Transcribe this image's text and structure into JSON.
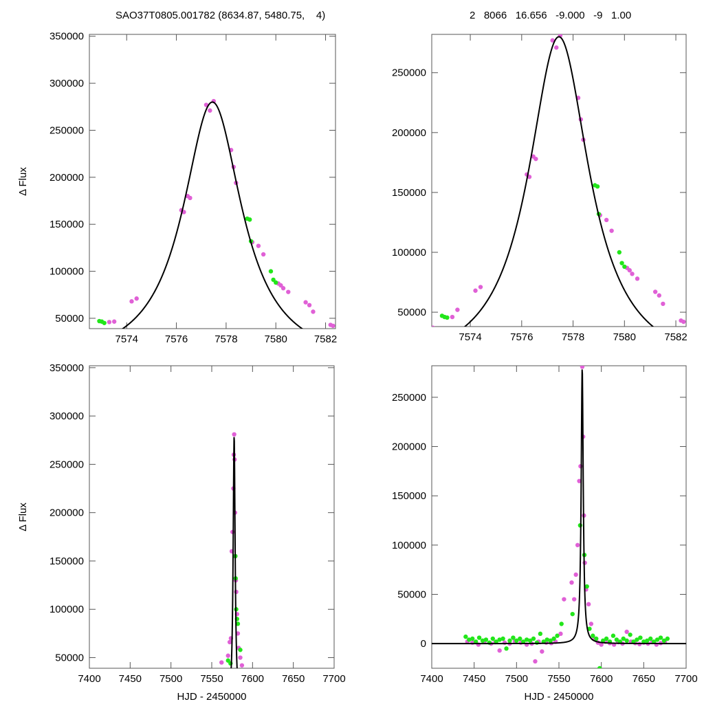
{
  "header": {
    "left": "SAO37T0805.001782 (8634.87, 5480.75,    4)",
    "right": "2   8066   16.656   -9.000   -9   1.00"
  },
  "colors": {
    "series_a": "#e060d6",
    "series_b": "#22e61a",
    "model": "#000000"
  },
  "chart_data": [
    {
      "type": "scatter",
      "ylabel": "Δ Flux",
      "xlabel": "",
      "xlim": [
        7572.5,
        7582.4
      ],
      "ylim": [
        39000,
        352000
      ],
      "xticks": [
        7574,
        7576,
        7578,
        7580,
        7582
      ],
      "yticks": [
        50000,
        100000,
        150000,
        200000,
        250000,
        300000,
        350000
      ],
      "model": {
        "t0": 7577.45,
        "peak": 280000,
        "base": 0,
        "width": 1.45
      },
      "series": [
        {
          "color": "magenta",
          "points": [
            [
              7573.3,
              46000
            ],
            [
              7573.5,
              46500
            ],
            [
              7574.2,
              68000
            ],
            [
              7574.4,
              71000
            ],
            [
              7576.2,
              165000
            ],
            [
              7576.3,
              163000
            ],
            [
              7576.45,
              180000
            ],
            [
              7576.55,
              178000
            ],
            [
              7577.2,
              277000
            ],
            [
              7577.35,
              271000
            ],
            [
              7577.5,
              281000
            ],
            [
              7578.2,
              229000
            ],
            [
              7578.3,
              211000
            ],
            [
              7578.4,
              194000
            ],
            [
              7579.05,
              131000
            ],
            [
              7579.3,
              127000
            ],
            [
              7579.5,
              118000
            ],
            [
              7580.1,
              87000
            ],
            [
              7580.2,
              85000
            ],
            [
              7580.3,
              82000
            ],
            [
              7580.5,
              78000
            ],
            [
              7581.2,
              67000
            ],
            [
              7581.35,
              64000
            ],
            [
              7581.5,
              57000
            ],
            [
              7582.2,
              43000
            ],
            [
              7582.3,
              42000
            ]
          ]
        },
        {
          "color": "green",
          "points": [
            [
              7572.9,
              47000
            ],
            [
              7573.0,
              46500
            ],
            [
              7573.1,
              45000
            ],
            [
              7578.85,
              156000
            ],
            [
              7578.95,
              155000
            ],
            [
              7579.0,
              132000
            ],
            [
              7579.8,
              100000
            ],
            [
              7579.9,
              91000
            ],
            [
              7580.0,
              88000
            ]
          ]
        }
      ]
    },
    {
      "type": "scatter",
      "ylabel": "",
      "xlabel": "",
      "xlim": [
        7572.5,
        7582.4
      ],
      "ylim": [
        38000,
        282000
      ],
      "xticks": [
        7574,
        7576,
        7578,
        7580,
        7582
      ],
      "yticks": [
        50000,
        100000,
        150000,
        200000,
        250000
      ],
      "model": {
        "t0": 7577.45,
        "peak": 280000,
        "base": 0,
        "width": 1.45
      },
      "series": [
        {
          "color": "magenta",
          "points": [
            [
              7572.55,
              37000
            ],
            [
              7573.3,
              46000
            ],
            [
              7573.5,
              52000
            ],
            [
              7574.2,
              68000
            ],
            [
              7574.4,
              71000
            ],
            [
              7576.2,
              165000
            ],
            [
              7576.3,
              163000
            ],
            [
              7576.45,
              180000
            ],
            [
              7576.55,
              178000
            ],
            [
              7577.2,
              277000
            ],
            [
              7577.35,
              271000
            ],
            [
              7577.5,
              281000
            ],
            [
              7578.2,
              229000
            ],
            [
              7578.3,
              211000
            ],
            [
              7578.4,
              194000
            ],
            [
              7579.05,
              131000
            ],
            [
              7579.3,
              127000
            ],
            [
              7579.5,
              118000
            ],
            [
              7580.1,
              87000
            ],
            [
              7580.2,
              85000
            ],
            [
              7580.3,
              82000
            ],
            [
              7580.5,
              78000
            ],
            [
              7581.2,
              67000
            ],
            [
              7581.35,
              64000
            ],
            [
              7581.5,
              57000
            ],
            [
              7582.2,
              43000
            ],
            [
              7582.3,
              42000
            ]
          ]
        },
        {
          "color": "green",
          "points": [
            [
              7572.9,
              47000
            ],
            [
              7573.0,
              46000
            ],
            [
              7573.1,
              45500
            ],
            [
              7578.85,
              156000
            ],
            [
              7578.95,
              155000
            ],
            [
              7579.0,
              132000
            ],
            [
              7579.8,
              100000
            ],
            [
              7579.9,
              91000
            ],
            [
              7580.0,
              88000
            ]
          ]
        }
      ]
    },
    {
      "type": "scatter",
      "ylabel": "Δ Flux",
      "xlabel": "HJD - 2450000",
      "xlim": [
        7400,
        7700
      ],
      "ylim": [
        39000,
        352000
      ],
      "xticks": [
        7400,
        7450,
        7500,
        7550,
        7600,
        7650,
        7700
      ],
      "yticks": [
        50000,
        100000,
        150000,
        200000,
        250000,
        300000,
        350000
      ],
      "model": {
        "t0": 7577.45,
        "peak": 280000,
        "base": 0,
        "width": 1.45
      },
      "series": [
        {
          "color": "magenta",
          "points": [
            [
              7562,
              45000
            ],
            [
              7570,
              52000
            ],
            [
              7572,
              66000
            ],
            [
              7573.5,
              70000
            ],
            [
              7574.5,
              160000
            ],
            [
              7575.5,
              180000
            ],
            [
              7576.5,
              225000
            ],
            [
              7577,
              260000
            ],
            [
              7577.5,
              281000
            ],
            [
              7578,
              255000
            ],
            [
              7578.5,
              200000
            ],
            [
              7579,
              155000
            ],
            [
              7579.5,
              130000
            ],
            [
              7580,
              118000
            ],
            [
              7581,
              95000
            ],
            [
              7582,
              75000
            ],
            [
              7583,
              60000
            ],
            [
              7585,
              50000
            ],
            [
              7587,
              42000
            ]
          ]
        },
        {
          "color": "green",
          "points": [
            [
              7570,
              47000
            ],
            [
              7573,
              44000
            ],
            [
              7578.9,
              155000
            ],
            [
              7579.3,
              132000
            ],
            [
              7580,
              100000
            ],
            [
              7581,
              90000
            ],
            [
              7582,
              85000
            ],
            [
              7585,
              58000
            ]
          ]
        }
      ]
    },
    {
      "type": "scatter",
      "ylabel": "",
      "xlabel": "HJD - 2450000",
      "xlim": [
        7400,
        7700
      ],
      "ylim": [
        -25000,
        282000
      ],
      "xticks": [
        7400,
        7450,
        7500,
        7550,
        7600,
        7650,
        7700
      ],
      "yticks": [
        0,
        50000,
        100000,
        150000,
        200000,
        250000
      ],
      "model": {
        "t0": 7577.45,
        "peak": 280000,
        "base": 0,
        "width": 1.45
      },
      "series": [
        {
          "color": "magenta",
          "points": [
            [
              7442,
              2000
            ],
            [
              7448,
              1000
            ],
            [
              7455,
              -1000
            ],
            [
              7462,
              2000
            ],
            [
              7470,
              0
            ],
            [
              7475,
              1500
            ],
            [
              7480,
              -7000
            ],
            [
              7486,
              1000
            ],
            [
              7492,
              0
            ],
            [
              7498,
              2500
            ],
            [
              7505,
              1000
            ],
            [
              7512,
              -1000
            ],
            [
              7518,
              0
            ],
            [
              7522,
              -18000
            ],
            [
              7526,
              2000
            ],
            [
              7530,
              -8000
            ],
            [
              7535,
              1000
            ],
            [
              7541,
              500
            ],
            [
              7546,
              2000
            ],
            [
              7552,
              10000
            ],
            [
              7556,
              45000
            ],
            [
              7565,
              62000
            ],
            [
              7568,
              45000
            ],
            [
              7570,
              70000
            ],
            [
              7572,
              100000
            ],
            [
              7574,
              165000
            ],
            [
              7575.5,
              180000
            ],
            [
              7577.5,
              281000
            ],
            [
              7578.5,
              210000
            ],
            [
              7579.5,
              130000
            ],
            [
              7580.5,
              82000
            ],
            [
              7582,
              55000
            ],
            [
              7585,
              40000
            ],
            [
              7588,
              20000
            ],
            [
              7592,
              5000
            ],
            [
              7596,
              1000
            ],
            [
              7600,
              -1000
            ],
            [
              7605,
              2000
            ],
            [
              7610,
              500
            ],
            [
              7615,
              -1000
            ],
            [
              7620,
              1500
            ],
            [
              7625,
              0
            ],
            [
              7630,
              12000
            ],
            [
              7635,
              2000
            ],
            [
              7640,
              500
            ],
            [
              7645,
              -500
            ],
            [
              7650,
              1000
            ],
            [
              7655,
              0
            ],
            [
              7660,
              1500
            ],
            [
              7665,
              -1000
            ],
            [
              7670,
              500
            ],
            [
              7675,
              2000
            ]
          ]
        },
        {
          "color": "green",
          "points": [
            [
              7440,
              7000
            ],
            [
              7444,
              4000
            ],
            [
              7448,
              5000
            ],
            [
              7452,
              2000
            ],
            [
              7456,
              6000
            ],
            [
              7460,
              3000
            ],
            [
              7464,
              4000
            ],
            [
              7468,
              1000
            ],
            [
              7472,
              5000
            ],
            [
              7476,
              2000
            ],
            [
              7480,
              4000
            ],
            [
              7484,
              5000
            ],
            [
              7488,
              -5000
            ],
            [
              7492,
              3000
            ],
            [
              7496,
              6000
            ],
            [
              7500,
              3000
            ],
            [
              7504,
              5000
            ],
            [
              7508,
              2000
            ],
            [
              7512,
              4000
            ],
            [
              7516,
              3000
            ],
            [
              7520,
              5000
            ],
            [
              7524,
              1000
            ],
            [
              7528,
              10000
            ],
            [
              7532,
              2000
            ],
            [
              7536,
              4000
            ],
            [
              7540,
              3000
            ],
            [
              7544,
              5000
            ],
            [
              7548,
              8000
            ],
            [
              7553,
              20000
            ],
            [
              7566,
              30000
            ],
            [
              7575,
              120000
            ],
            [
              7580,
              90000
            ],
            [
              7583,
              58000
            ],
            [
              7586,
              15000
            ],
            [
              7590,
              8000
            ],
            [
              7594,
              5000
            ],
            [
              7598,
              -25000
            ],
            [
              7602,
              3000
            ],
            [
              7606,
              5000
            ],
            [
              7610,
              2000
            ],
            [
              7614,
              8000
            ],
            [
              7618,
              4000
            ],
            [
              7622,
              2000
            ],
            [
              7626,
              5000
            ],
            [
              7630,
              3000
            ],
            [
              7634,
              9000
            ],
            [
              7638,
              2000
            ],
            [
              7642,
              4000
            ],
            [
              7646,
              6000
            ],
            [
              7650,
              2000
            ],
            [
              7654,
              3000
            ],
            [
              7658,
              5000
            ],
            [
              7662,
              2000
            ],
            [
              7666,
              4000
            ],
            [
              7670,
              6000
            ],
            [
              7674,
              3000
            ],
            [
              7678,
              5000
            ]
          ]
        }
      ]
    }
  ]
}
